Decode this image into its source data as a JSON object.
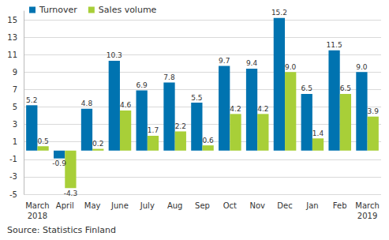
{
  "chart_data": {
    "type": "bar",
    "categories": [
      "March\n2018",
      "April",
      "May",
      "June",
      "July",
      "Aug",
      "Sep",
      "Oct",
      "Nov",
      "Dec",
      "Jan",
      "Feb",
      "March\n2019"
    ],
    "series": [
      {
        "name": "Turnover",
        "color": "#0073b0",
        "values": [
          5.2,
          -0.9,
          4.8,
          10.3,
          6.9,
          7.8,
          5.5,
          9.7,
          9.4,
          15.2,
          6.5,
          11.5,
          9.0
        ],
        "value_labels": [
          "5.2",
          "-0.9",
          "4.8",
          "10.3",
          "6.9",
          "7.8",
          "5.5",
          "9.7",
          "9.4",
          "15.2",
          "6.5",
          "11.5",
          "9.0"
        ]
      },
      {
        "name": "Sales volume",
        "color": "#a8cf38",
        "values": [
          0.5,
          -4.3,
          0.2,
          4.6,
          1.7,
          2.2,
          0.6,
          4.2,
          4.2,
          9.0,
          1.4,
          6.5,
          3.9
        ],
        "value_labels": [
          "0.5",
          "-4.3",
          "0.2",
          "4.6",
          "1.7",
          "2.2",
          "0.6",
          "4.2",
          "4.2",
          "9.0",
          "1.4",
          "6.5",
          "3.9"
        ]
      }
    ],
    "ylim": [
      -5,
      16
    ],
    "yticks": [
      -5,
      -3,
      -1,
      1,
      3,
      5,
      7,
      9,
      11,
      13,
      15
    ],
    "grid": true,
    "legend": "top-left",
    "data_labels": true,
    "annotation": "Source: Statistics Finland"
  }
}
